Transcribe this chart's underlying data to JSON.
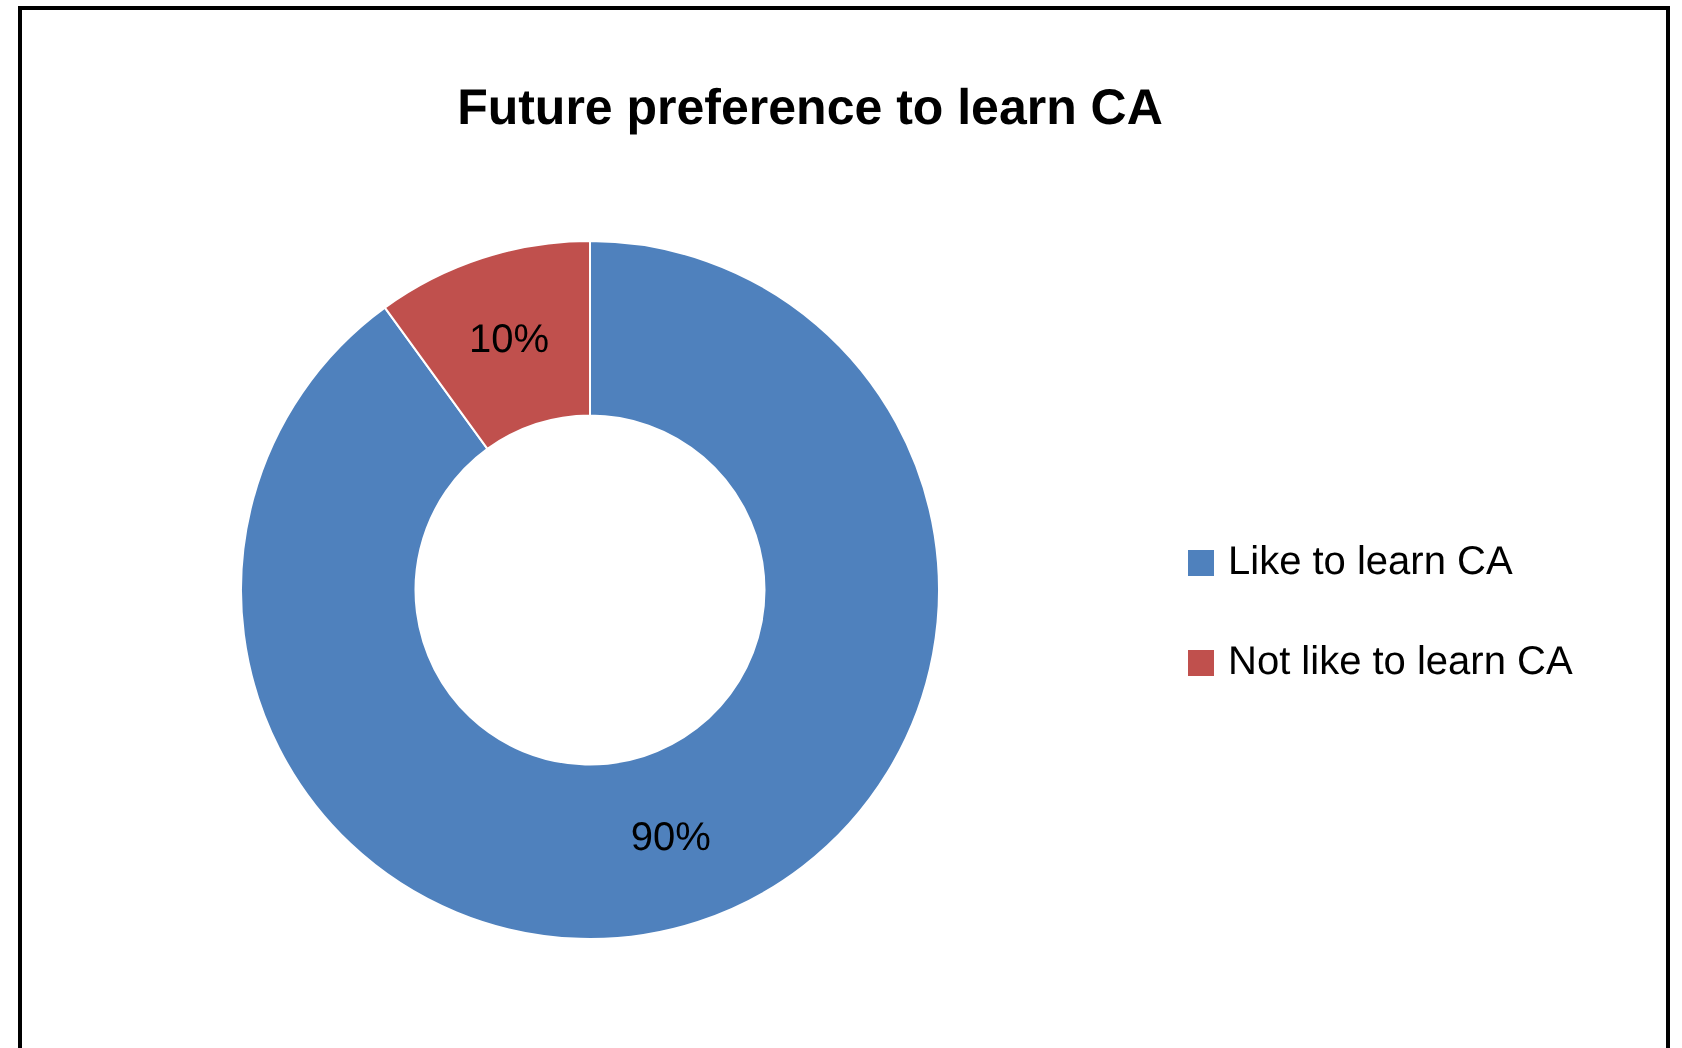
{
  "chart_data": {
    "type": "donut",
    "title": "Future preference to learn CA",
    "categories": [
      "Like to learn CA",
      "Not like to learn CA"
    ],
    "values": [
      90,
      10
    ],
    "colors": [
      "#4f81bd",
      "#c0504d"
    ],
    "value_labels": [
      "90%",
      "10%"
    ],
    "legend": "right"
  }
}
